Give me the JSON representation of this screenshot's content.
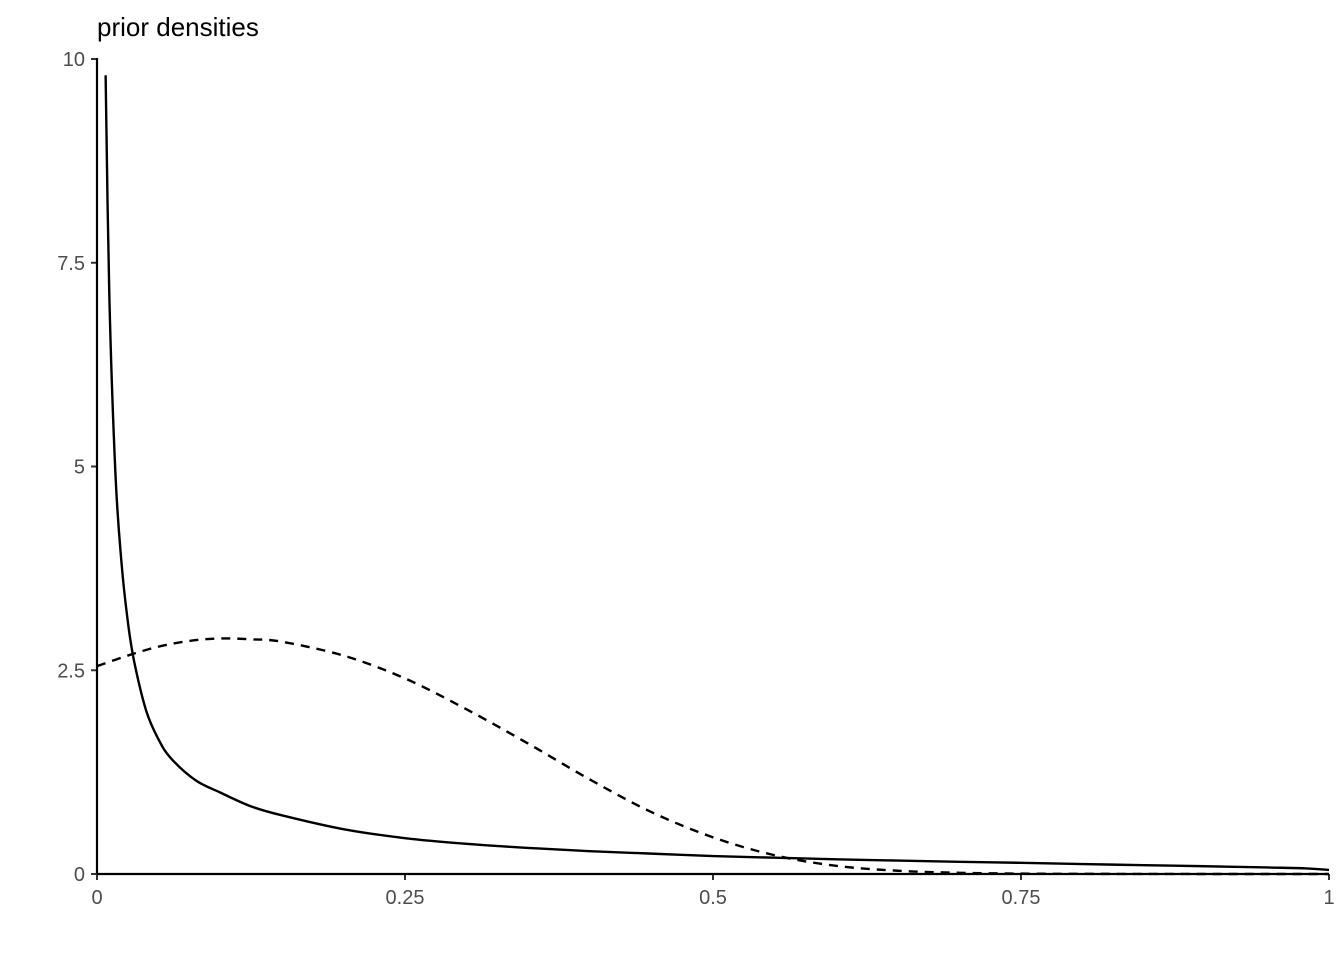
{
  "chart_data": {
    "type": "line",
    "title": "prior densities",
    "xlabel": "",
    "ylabel": "",
    "xlim": [
      0,
      1
    ],
    "ylim": [
      0,
      10
    ],
    "grid": false,
    "legend": "none",
    "x_ticks": [
      {
        "value": 0,
        "label": "0"
      },
      {
        "value": 0.25,
        "label": "0.25"
      },
      {
        "value": 0.5,
        "label": "0.5"
      },
      {
        "value": 0.75,
        "label": "0.75"
      },
      {
        "value": 1,
        "label": "1"
      }
    ],
    "y_ticks": [
      {
        "value": 0,
        "label": "0"
      },
      {
        "value": 2.5,
        "label": "2.5"
      },
      {
        "value": 5,
        "label": "5"
      },
      {
        "value": 7.5,
        "label": "7.5"
      },
      {
        "value": 10,
        "label": "10"
      }
    ],
    "series": [
      {
        "line_style": "solid",
        "color": "#000000",
        "x": [
          0.007,
          0.01,
          0.015,
          0.02,
          0.025,
          0.03,
          0.04,
          0.05,
          0.06,
          0.08,
          0.1,
          0.125,
          0.15,
          0.2,
          0.25,
          0.3,
          0.35,
          0.4,
          0.45,
          0.5,
          0.55,
          0.6,
          0.65,
          0.7,
          0.75,
          0.8,
          0.85,
          0.9,
          0.95,
          0.98,
          1.0
        ],
        "y": [
          9.8,
          7.1,
          4.9,
          3.8,
          3.1,
          2.62,
          2.0,
          1.65,
          1.42,
          1.15,
          1.0,
          0.83,
          0.72,
          0.55,
          0.44,
          0.37,
          0.32,
          0.28,
          0.25,
          0.22,
          0.2,
          0.18,
          0.165,
          0.15,
          0.137,
          0.122,
          0.108,
          0.095,
          0.08,
          0.07,
          0.05
        ]
      },
      {
        "line_style": "dashed",
        "color": "#000000",
        "x": [
          0.0,
          0.025,
          0.05,
          0.075,
          0.1,
          0.125,
          0.15,
          0.2,
          0.25,
          0.3,
          0.35,
          0.4,
          0.45,
          0.5,
          0.55,
          0.6,
          0.65,
          0.7,
          0.75,
          0.8,
          0.85,
          0.9,
          0.95,
          1.0
        ],
        "y": [
          2.55,
          2.68,
          2.79,
          2.86,
          2.89,
          2.88,
          2.85,
          2.68,
          2.4,
          2.02,
          1.6,
          1.16,
          0.76,
          0.45,
          0.23,
          0.1,
          0.04,
          0.015,
          0.005,
          0.002,
          0.001,
          0.0,
          0.0,
          0.0
        ]
      }
    ]
  }
}
